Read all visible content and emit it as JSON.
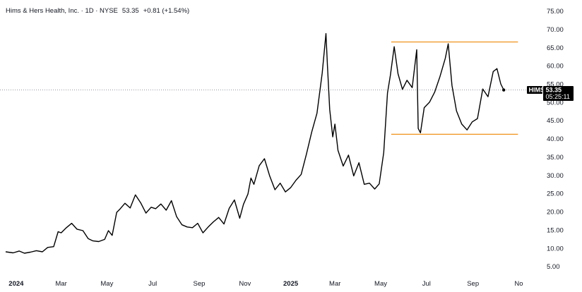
{
  "chart_data": {
    "type": "line",
    "title": "Hims & Hers Health, Inc. · 1D · NYSE",
    "last_price": "53.35",
    "change": "+0.81 (+1.54%)",
    "ticker": "HIMS",
    "price_label": "53.35",
    "countdown": "05:25:11",
    "y_ticks": [
      "75.00",
      "70.00",
      "65.00",
      "60.00",
      "55.00",
      "50.00",
      "45.00",
      "40.00",
      "35.00",
      "30.00",
      "25.00",
      "20.00",
      "15.00",
      "10.00",
      "5.00"
    ],
    "ylim": [
      3,
      78
    ],
    "x_range": [
      "2023-12-18",
      "2025-11-10"
    ],
    "x_ticks": [
      {
        "label": "2024",
        "date": "2024-01-01",
        "bold": true
      },
      {
        "label": "Mar",
        "date": "2024-03-01",
        "bold": false
      },
      {
        "label": "May",
        "date": "2024-05-01",
        "bold": false
      },
      {
        "label": "Jul",
        "date": "2024-07-01",
        "bold": false
      },
      {
        "label": "Sep",
        "date": "2024-09-01",
        "bold": false
      },
      {
        "label": "Nov",
        "date": "2024-11-01",
        "bold": false
      },
      {
        "label": "2025",
        "date": "2025-01-01",
        "bold": true
      },
      {
        "label": "Mar",
        "date": "2025-03-01",
        "bold": false
      },
      {
        "label": "May",
        "date": "2025-05-01",
        "bold": false
      },
      {
        "label": "Jul",
        "date": "2025-07-01",
        "bold": false
      },
      {
        "label": "Sep",
        "date": "2025-09-01",
        "bold": false
      },
      {
        "label": "No",
        "date": "2025-11-01",
        "bold": false
      }
    ],
    "grid": false,
    "colors": {
      "line": "#000000",
      "channel": "#f0921a",
      "tag": "#000000",
      "axis_text": "#131722"
    },
    "channel_lines": [
      {
        "start": "2025-05-15",
        "end": "2025-10-31",
        "y": 66.5
      },
      {
        "start": "2025-05-15",
        "end": "2025-10-31",
        "y": 41.2
      }
    ],
    "series": [
      {
        "x": [
          "2023-12-18",
          "2023-12-28",
          "2024-01-05",
          "2024-01-12",
          "2024-01-20",
          "2024-01-28",
          "2024-02-05",
          "2024-02-12",
          "2024-02-20",
          "2024-02-26",
          "2024-03-01",
          "2024-03-08",
          "2024-03-15",
          "2024-03-22",
          "2024-03-30",
          "2024-04-06",
          "2024-04-12",
          "2024-04-20",
          "2024-04-28",
          "2024-05-03",
          "2024-05-08",
          "2024-05-14",
          "2024-05-18",
          "2024-05-25",
          "2024-06-01",
          "2024-06-08",
          "2024-06-15",
          "2024-06-22",
          "2024-06-29",
          "2024-07-05",
          "2024-07-12",
          "2024-07-19",
          "2024-07-26",
          "2024-08-02",
          "2024-08-09",
          "2024-08-16",
          "2024-08-23",
          "2024-08-30",
          "2024-09-06",
          "2024-09-13",
          "2024-09-20",
          "2024-09-27",
          "2024-10-04",
          "2024-10-11",
          "2024-10-18",
          "2024-10-25",
          "2024-10-30",
          "2024-11-05",
          "2024-11-09",
          "2024-11-13",
          "2024-11-20",
          "2024-11-27",
          "2024-12-04",
          "2024-12-11",
          "2024-12-18",
          "2024-12-25",
          "2025-01-01",
          "2025-01-08",
          "2025-01-15",
          "2025-01-22",
          "2025-01-29",
          "2025-02-05",
          "2025-02-12",
          "2025-02-17",
          "2025-02-19",
          "2025-02-22",
          "2025-02-26",
          "2025-03-01",
          "2025-03-05",
          "2025-03-12",
          "2025-03-19",
          "2025-03-26",
          "2025-04-02",
          "2025-04-09",
          "2025-04-16",
          "2025-04-23",
          "2025-04-29",
          "2025-05-05",
          "2025-05-10",
          "2025-05-14",
          "2025-05-19",
          "2025-05-24",
          "2025-05-30",
          "2025-06-05",
          "2025-06-12",
          "2025-06-18",
          "2025-06-20",
          "2025-06-23",
          "2025-06-28",
          "2025-07-05",
          "2025-07-12",
          "2025-07-19",
          "2025-07-26",
          "2025-07-30",
          "2025-08-04",
          "2025-08-10",
          "2025-08-17",
          "2025-08-24",
          "2025-08-31",
          "2025-09-07",
          "2025-09-14",
          "2025-09-21",
          "2025-09-28",
          "2025-10-03",
          "2025-10-08",
          "2025-10-12"
        ],
        "y": [
          9.0,
          8.7,
          9.2,
          8.6,
          8.9,
          9.3,
          9.0,
          10.2,
          10.4,
          14.5,
          14.2,
          15.6,
          16.8,
          15.2,
          14.8,
          12.6,
          12.0,
          11.8,
          12.4,
          14.8,
          13.5,
          19.8,
          20.6,
          22.3,
          21.0,
          24.6,
          22.4,
          19.6,
          21.2,
          20.8,
          22.1,
          20.4,
          23.0,
          18.6,
          16.4,
          15.8,
          15.6,
          16.8,
          14.2,
          15.8,
          17.2,
          18.4,
          16.6,
          20.9,
          23.2,
          18.2,
          22.0,
          24.8,
          29.2,
          27.5,
          32.6,
          34.5,
          29.8,
          26.0,
          27.8,
          25.4,
          26.6,
          28.6,
          30.2,
          35.8,
          41.8,
          47.0,
          58.0,
          68.8,
          60.0,
          48.0,
          40.5,
          44.0,
          36.8,
          32.5,
          35.5,
          29.8,
          33.4,
          27.5,
          27.8,
          26.2,
          27.6,
          36.2,
          52.5,
          57.5,
          65.2,
          57.8,
          53.5,
          56.0,
          54.0,
          64.4,
          42.8,
          41.6,
          48.5,
          50.0,
          52.8,
          57.0,
          62.0,
          66.0,
          54.6,
          47.6,
          44.0,
          42.4,
          44.6,
          45.5,
          53.6,
          51.5,
          58.4,
          59.2,
          55.0,
          53.35
        ]
      }
    ]
  }
}
